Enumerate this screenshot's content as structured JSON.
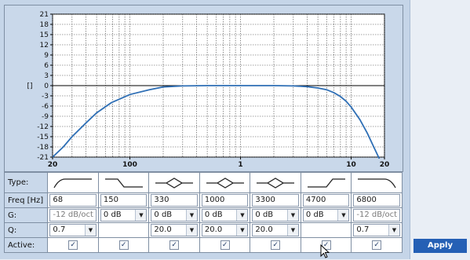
{
  "chart_data": {
    "type": "line",
    "ylabel": "[]",
    "x_scale": "log",
    "xlim": [
      20,
      20000
    ],
    "ylim": [
      -21,
      21
    ],
    "y_ticks": [
      21,
      18,
      15,
      12,
      9,
      6,
      3,
      0,
      -3,
      -6,
      -9,
      -12,
      -15,
      -18,
      -21
    ],
    "x_tick_labels": [
      {
        "x": 20,
        "label": "20"
      },
      {
        "x": 100,
        "label": "100"
      },
      {
        "x": 1000,
        "label": "1"
      },
      {
        "x": 10000,
        "label": "10"
      },
      {
        "x": 20000,
        "label": "20"
      }
    ],
    "grid": true,
    "series": [
      {
        "color": "#2f6fb5",
        "x": [
          20,
          25,
          30,
          40,
          50,
          68,
          100,
          150,
          200,
          300,
          500,
          1000,
          2000,
          3000,
          4000,
          5000,
          6000,
          7000,
          8000,
          9000,
          10000,
          12000,
          14000,
          16000,
          18000
        ],
        "y": [
          -21,
          -18,
          -15,
          -11,
          -8,
          -5,
          -2.6,
          -1.2,
          -0.4,
          -0.1,
          0,
          0,
          0,
          -0.1,
          -0.3,
          -0.7,
          -1.2,
          -2.1,
          -3.2,
          -4.6,
          -6.3,
          -10,
          -14,
          -18,
          -21.5
        ]
      }
    ]
  },
  "table": {
    "labels": {
      "type": "Type:",
      "freq": "Freq [Hz]",
      "gain": "G:",
      "q": "Q:",
      "active": "Active:"
    },
    "bands": [
      {
        "shape": "low-cut-icon",
        "freq": "68",
        "gain": {
          "kind": "text",
          "value": "-12 dB/oct"
        },
        "q": {
          "kind": "select",
          "value": "0.7"
        },
        "active": true
      },
      {
        "shape": "low-shelf-icon",
        "freq": "150",
        "gain": {
          "kind": "select",
          "value": "0 dB"
        },
        "q": {
          "kind": "none",
          "value": ""
        },
        "active": true
      },
      {
        "shape": "peak-icon",
        "freq": "330",
        "gain": {
          "kind": "select",
          "value": "0 dB"
        },
        "q": {
          "kind": "select",
          "value": "20.0"
        },
        "active": true
      },
      {
        "shape": "peak-icon",
        "freq": "1000",
        "gain": {
          "kind": "select",
          "value": "0 dB"
        },
        "q": {
          "kind": "select",
          "value": "20.0"
        },
        "active": true
      },
      {
        "shape": "peak-icon",
        "freq": "3300",
        "gain": {
          "kind": "select",
          "value": "0 dB"
        },
        "q": {
          "kind": "select",
          "value": "20.0"
        },
        "active": true
      },
      {
        "shape": "high-shelf-icon",
        "freq": "4700",
        "gain": {
          "kind": "select",
          "value": "0 dB"
        },
        "q": {
          "kind": "none",
          "value": ""
        },
        "active": true
      },
      {
        "shape": "high-cut-icon",
        "freq": "6800",
        "gain": {
          "kind": "text",
          "value": "-12 dB/oct"
        },
        "q": {
          "kind": "select",
          "value": "0.7"
        },
        "active": true
      }
    ]
  },
  "apply_label": "Apply",
  "icons": {
    "checkmark": "✓",
    "dropdown": "▼"
  }
}
